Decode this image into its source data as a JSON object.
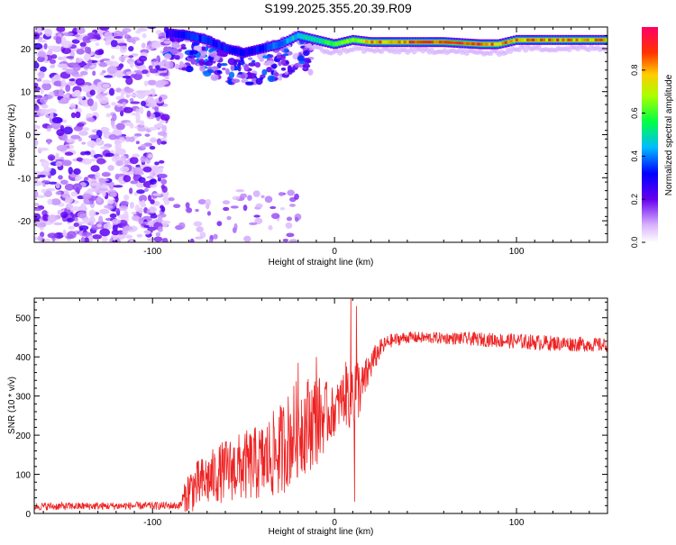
{
  "title": "S199.2025.355.20.39.R09",
  "chart_data": [
    {
      "type": "heatmap",
      "name": "spectrogram",
      "xlabel": "Height of straight line (km)",
      "ylabel": "Frequency (Hz)",
      "xlim": [
        -165,
        150
      ],
      "ylim": [
        -25,
        25
      ],
      "xticks": [
        -100,
        0,
        100
      ],
      "yticks": [
        -20,
        -10,
        0,
        10,
        20
      ],
      "colorbar": {
        "label": "Normalized spectral amplitude",
        "range": [
          0.0,
          1.0
        ],
        "ticks": [
          "0.0",
          "0.2",
          "0.4",
          "0.6",
          "0.8"
        ],
        "tick_values": [
          0.0,
          0.2,
          0.4,
          0.6,
          0.8
        ]
      },
      "carrier_track": {
        "description_values": "strong carrier line near top of band",
        "x": [
          -90,
          -80,
          -70,
          -60,
          -50,
          -40,
          -30,
          -20,
          -10,
          0,
          10,
          20,
          40,
          60,
          80,
          90,
          100,
          120,
          150
        ],
        "freq": [
          23.5,
          23,
          22,
          20,
          19,
          20,
          21,
          23,
          22,
          21,
          22,
          21.5,
          21.5,
          21.5,
          21,
          21,
          22,
          22,
          22
        ],
        "amplitude": [
          0.3,
          0.35,
          0.35,
          0.35,
          0.3,
          0.35,
          0.4,
          0.5,
          0.55,
          0.6,
          0.7,
          0.85,
          0.92,
          0.95,
          0.95,
          0.9,
          0.85,
          0.9,
          0.85
        ]
      },
      "noise_region_x": [
        -165,
        -92
      ]
    },
    {
      "type": "line",
      "name": "snr",
      "xlabel": "Height of straight line (km)",
      "ylabel": "SNR (10 * v/v)",
      "xlim": [
        -165,
        150
      ],
      "ylim": [
        0,
        550
      ],
      "xticks": [
        -100,
        0,
        100
      ],
      "yticks": [
        0,
        100,
        200,
        300,
        400,
        500
      ],
      "series_color": "#ee2222",
      "envelope": {
        "x": [
          -165,
          -85,
          -80,
          -60,
          -40,
          -30,
          -20,
          -10,
          0,
          5,
          10,
          15,
          20,
          25,
          30,
          40,
          60,
          80,
          100,
          120,
          150
        ],
        "mean": [
          18,
          20,
          60,
          110,
          130,
          160,
          220,
          240,
          260,
          300,
          320,
          320,
          380,
          420,
          440,
          450,
          448,
          445,
          440,
          435,
          430
        ],
        "spread": [
          10,
          10,
          60,
          80,
          100,
          120,
          130,
          120,
          60,
          70,
          120,
          60,
          40,
          25,
          18,
          15,
          15,
          18,
          20,
          20,
          18
        ]
      },
      "spikes": [
        {
          "x": 9,
          "y": 550
        },
        {
          "x": 12,
          "y": 530
        },
        {
          "x": 11,
          "y": 30
        },
        {
          "x": -20,
          "y": 385
        },
        {
          "x": -10,
          "y": 400
        }
      ]
    }
  ]
}
